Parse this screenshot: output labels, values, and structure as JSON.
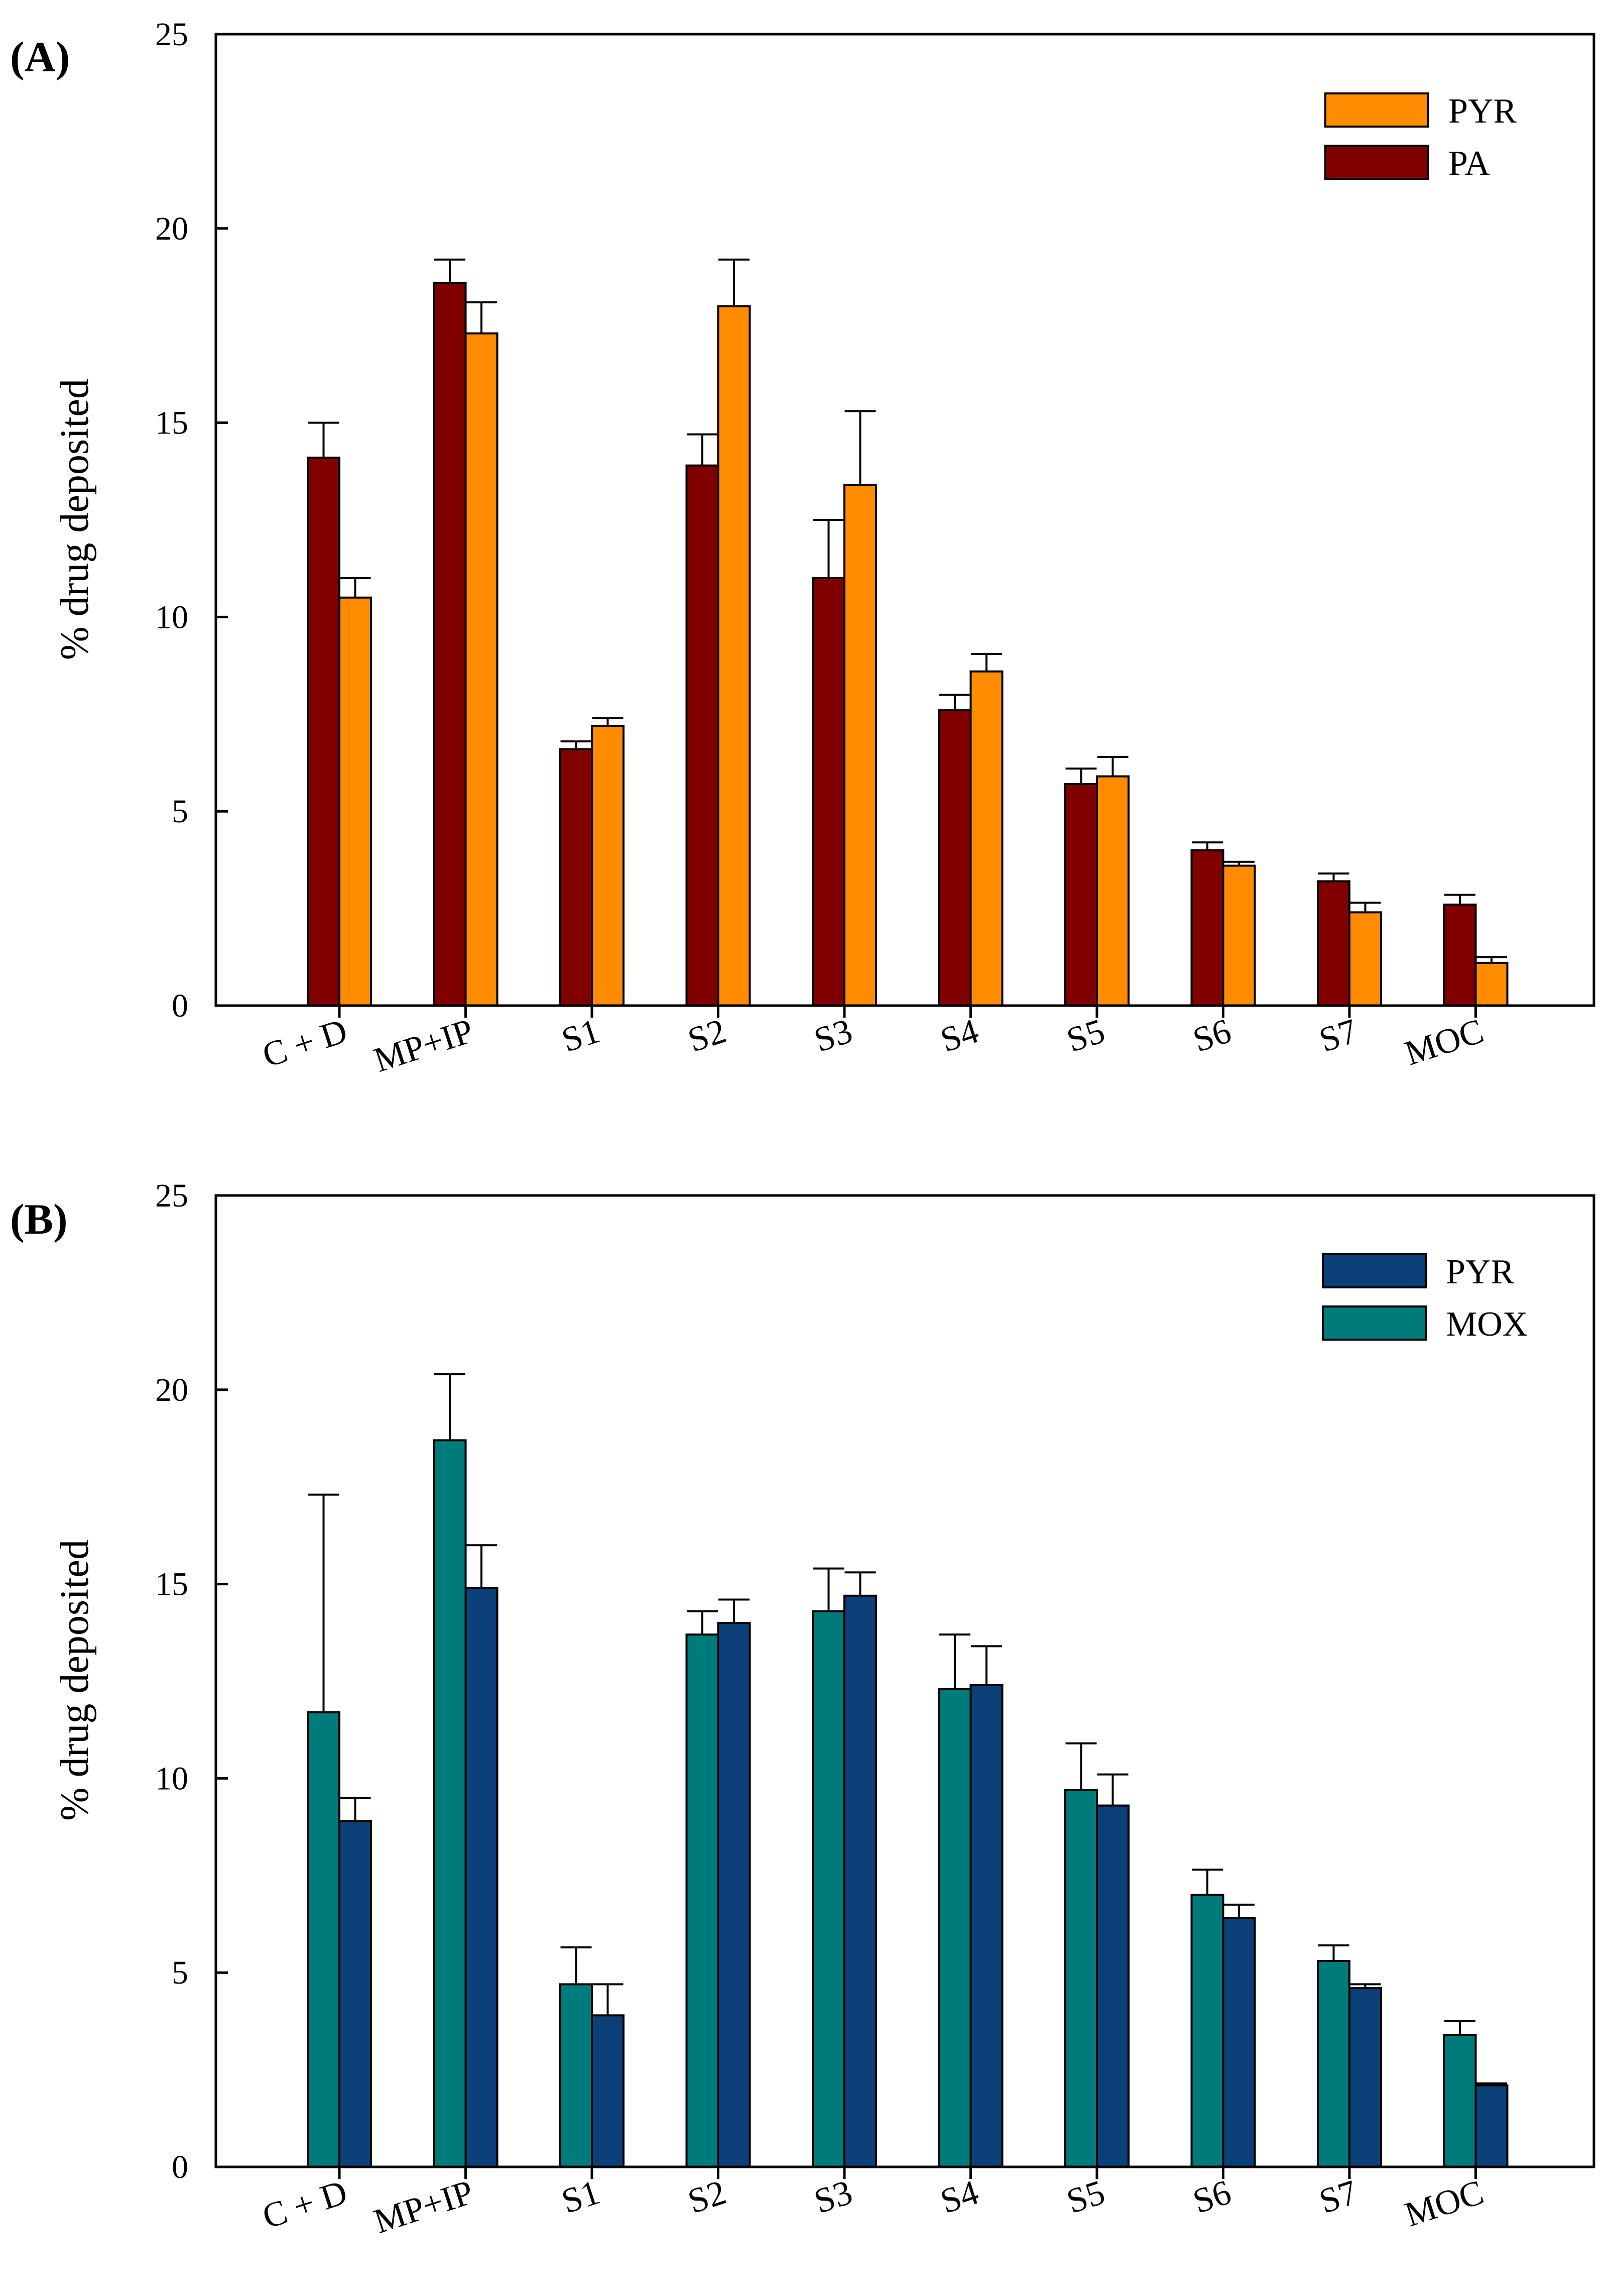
{
  "chart_data": [
    {
      "type": "bar",
      "panel_label": "(A)",
      "ylabel": "% drug deposited",
      "xlabel": "",
      "ylim": [
        0,
        25
      ],
      "yticks": [
        "0",
        "5",
        "10",
        "15",
        "20",
        "25"
      ],
      "categories": [
        "C + D",
        "MP+IP",
        "S1",
        "S2",
        "S3",
        "S4",
        "S5",
        "S6",
        "S7",
        "MOC"
      ],
      "legend_position": "top-right",
      "legend": [
        {
          "name": "PYR",
          "color": "#FF8C00"
        },
        {
          "name": "PA",
          "color": "#800000"
        }
      ],
      "series": [
        {
          "name": "PA",
          "color": "#800000",
          "values": [
            14.1,
            18.6,
            6.6,
            13.9,
            11.0,
            7.6,
            5.7,
            4.0,
            3.2,
            2.6
          ],
          "errors": [
            0.9,
            0.6,
            0.2,
            0.8,
            1.5,
            0.4,
            0.4,
            0.2,
            0.2,
            0.25
          ]
        },
        {
          "name": "PYR",
          "color": "#FF8C00",
          "values": [
            10.5,
            17.3,
            7.2,
            18.0,
            13.4,
            8.6,
            5.9,
            3.6,
            2.4,
            1.1
          ],
          "errors": [
            0.5,
            0.8,
            0.2,
            1.2,
            1.9,
            0.45,
            0.5,
            0.1,
            0.25,
            0.15
          ]
        }
      ]
    },
    {
      "type": "bar",
      "panel_label": "(B)",
      "ylabel": "% drug deposited",
      "xlabel": "",
      "ylim": [
        0,
        25
      ],
      "yticks": [
        "0",
        "5",
        "10",
        "15",
        "20",
        "25"
      ],
      "categories": [
        "C + D",
        "MP+IP",
        "S1",
        "S2",
        "S3",
        "S4",
        "S5",
        "S6",
        "S7",
        "MOC"
      ],
      "legend_position": "top-right",
      "legend": [
        {
          "name": "PYR",
          "color": "#0B4079"
        },
        {
          "name": "MOX",
          "color": "#007B7B"
        }
      ],
      "series": [
        {
          "name": "MOX",
          "color": "#007B7B",
          "values": [
            11.7,
            18.7,
            4.7,
            13.7,
            14.3,
            12.3,
            9.7,
            7.0,
            5.3,
            3.4
          ],
          "errors": [
            5.6,
            1.7,
            0.95,
            0.6,
            1.1,
            1.4,
            1.2,
            0.65,
            0.4,
            0.35
          ]
        },
        {
          "name": "PYR",
          "color": "#0B4079",
          "values": [
            8.9,
            14.9,
            3.9,
            14.0,
            14.7,
            12.4,
            9.3,
            6.4,
            4.6,
            2.1
          ],
          "errors": [
            0.6,
            1.1,
            0.8,
            0.6,
            0.6,
            1.0,
            0.8,
            0.35,
            0.1,
            0.05
          ]
        }
      ]
    }
  ]
}
